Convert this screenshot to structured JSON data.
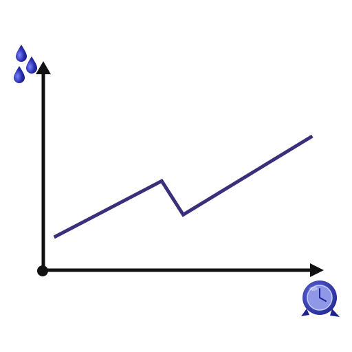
{
  "chart_data": {
    "type": "line",
    "title": "",
    "xlabel": "",
    "ylabel": "",
    "x": [
      0,
      5,
      6,
      12
    ],
    "series": [
      {
        "values": [
          3,
          8,
          5,
          12
        ]
      }
    ],
    "xlim": [
      -0.5,
      12.5
    ],
    "ylim": [
      0,
      18
    ],
    "grid": false,
    "legend": "none",
    "y_axis_icon": "water-drops-icon",
    "x_axis_icon": "clock-icon",
    "colors": {
      "axis": "#111111",
      "line": "#3a2f7a",
      "icon": "#2a2f9a",
      "icon_light": "#6b74d9"
    }
  }
}
